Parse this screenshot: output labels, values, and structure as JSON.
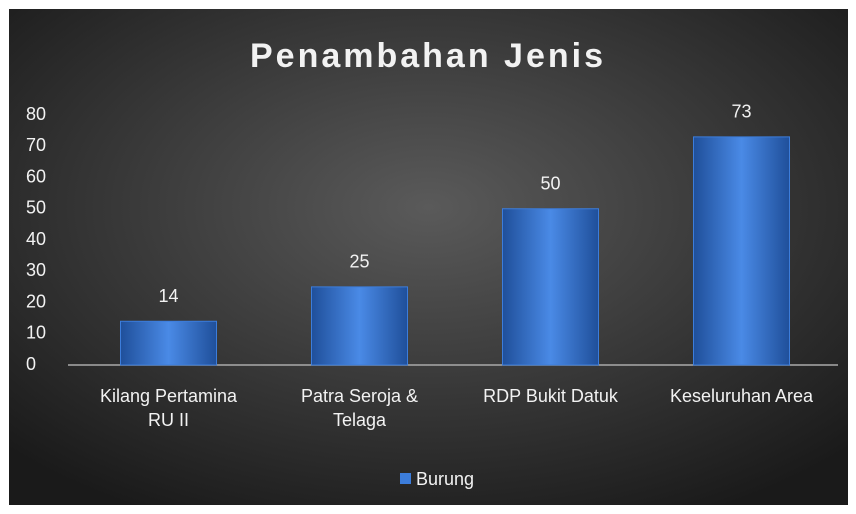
{
  "chart_data": {
    "type": "bar",
    "title": "Penambahan Jenis",
    "categories": [
      "Kilang Pertamina RU II",
      "Patra Seroja & Telaga",
      "RDP Bukit Datuk",
      "Keseluruhan Area"
    ],
    "series": [
      {
        "name": "Burung",
        "color": "#3c7ddb",
        "values": [
          14,
          25,
          50,
          73
        ]
      }
    ],
    "ylim": [
      0,
      80
    ],
    "yticks": [
      0,
      10,
      20,
      30,
      40,
      50,
      60,
      70,
      80
    ],
    "grid": false,
    "legend": "bottom"
  }
}
